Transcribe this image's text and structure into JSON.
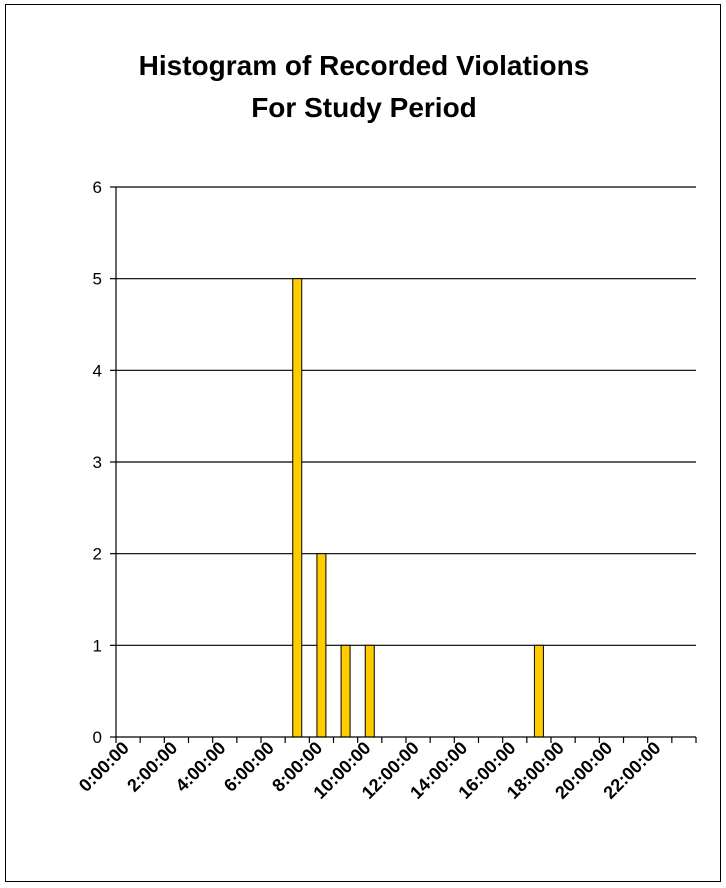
{
  "chart_data": {
    "type": "bar",
    "title": [
      "Histogram of Recorded Violations",
      "For Study Period"
    ],
    "xlabel": "",
    "ylabel": "",
    "ylim": [
      0,
      6
    ],
    "yticks": [
      0,
      1,
      2,
      3,
      4,
      5,
      6
    ],
    "grid": true,
    "legend": "none",
    "bins": [
      "0:00:00",
      "1:00:00",
      "2:00:00",
      "3:00:00",
      "4:00:00",
      "5:00:00",
      "6:00:00",
      "7:00:00",
      "8:00:00",
      "9:00:00",
      "10:00:00",
      "11:00:00",
      "12:00:00",
      "13:00:00",
      "14:00:00",
      "15:00:00",
      "16:00:00",
      "17:00:00",
      "18:00:00",
      "19:00:00",
      "20:00:00",
      "21:00:00",
      "22:00:00",
      "23:00:00"
    ],
    "x_tick_labels": [
      "0:00:00",
      "2:00:00",
      "4:00:00",
      "6:00:00",
      "8:00:00",
      "10:00:00",
      "12:00:00",
      "14:00:00",
      "16:00:00",
      "18:00:00",
      "20:00:00",
      "22:00:00"
    ],
    "values": [
      0,
      0,
      0,
      0,
      0,
      0,
      0,
      5,
      2,
      1,
      1,
      0,
      0,
      0,
      0,
      0,
      0,
      1,
      0,
      0,
      0,
      0,
      0,
      0
    ],
    "colors": {
      "bar_fill": "#FFCC00",
      "bar_stroke": "#000000",
      "grid": "#000000"
    }
  }
}
